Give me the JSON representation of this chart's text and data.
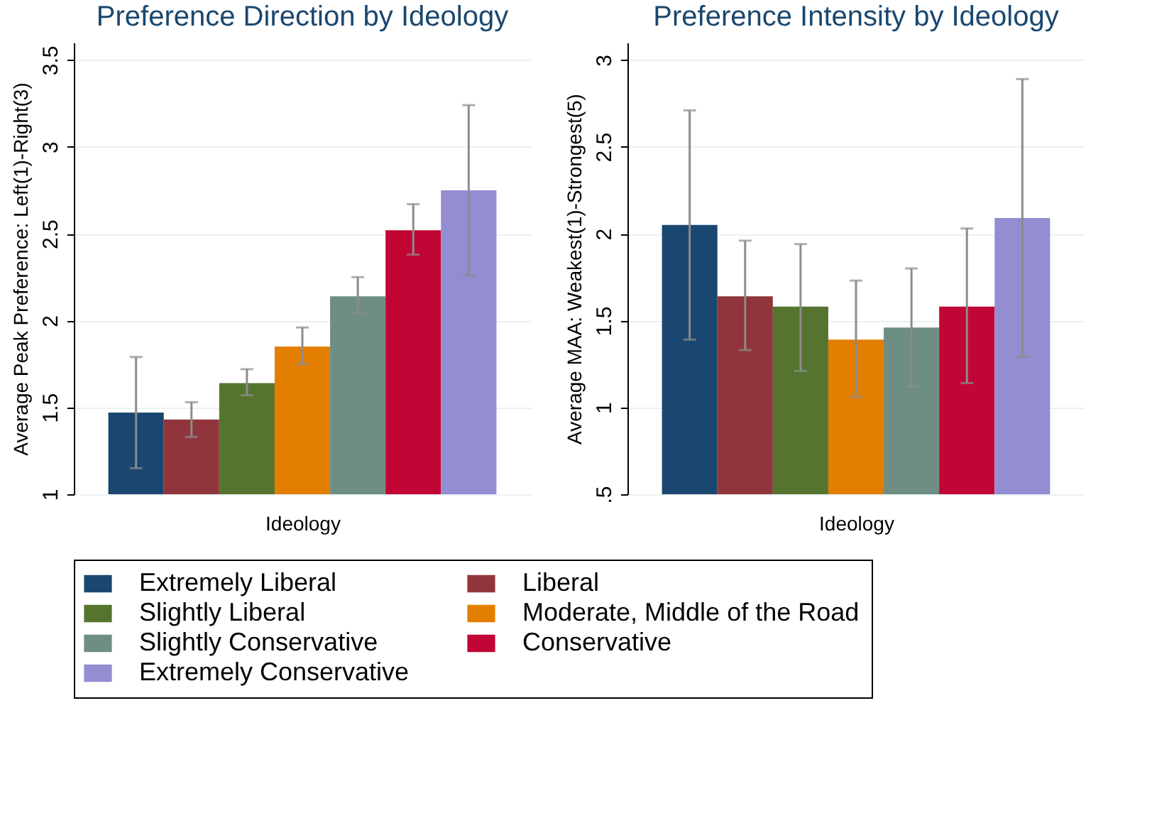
{
  "chart_data": [
    {
      "type": "bar",
      "title": "Preference Direction by Ideology",
      "xlabel": "Ideology",
      "ylabel": "Average Peak Preference: Left(1)-Right(3)",
      "categories": [
        null
      ],
      "ylim": [
        1,
        3.6
      ],
      "yticks": [
        1,
        1.5,
        2,
        2.5,
        3,
        3.5
      ],
      "grid": "y",
      "legend": "bottom",
      "series": [
        {
          "name": "Extremely Liberal",
          "color": "#1a476f",
          "values": [
            1.47
          ],
          "errors": [
            [
              1.15,
              1.79
            ]
          ]
        },
        {
          "name": "Liberal",
          "color": "#90353b",
          "values": [
            1.43
          ],
          "errors": [
            [
              1.33,
              1.53
            ]
          ]
        },
        {
          "name": "Slightly Liberal",
          "color": "#55752f",
          "values": [
            1.64
          ],
          "errors": [
            [
              1.57,
              1.72
            ]
          ]
        },
        {
          "name": "Moderate, Middle of the Road",
          "color": "#e37e00",
          "values": [
            1.85
          ],
          "errors": [
            [
              1.75,
              1.96
            ]
          ]
        },
        {
          "name": "Slightly Conservative",
          "color": "#6e8e84",
          "values": [
            2.14
          ],
          "errors": [
            [
              2.04,
              2.25
            ]
          ]
        },
        {
          "name": "Conservative",
          "color": "#c10534",
          "values": [
            2.52
          ],
          "errors": [
            [
              2.38,
              2.67
            ]
          ]
        },
        {
          "name": "Extremely Conservative",
          "color": "#938dd2",
          "values": [
            2.75
          ],
          "errors": [
            [
              2.26,
              3.24
            ]
          ]
        }
      ]
    },
    {
      "type": "bar",
      "title": "Preference Intensity by Ideology",
      "xlabel": "Ideology",
      "ylabel": "Average MAA: Weakest(1)-Strongest(5)",
      "categories": [
        null
      ],
      "ylim": [
        0.5,
        3.1
      ],
      "yticks": [
        {
          "value": 0.5,
          "label": ".5"
        },
        1,
        1.5,
        2,
        2.5,
        3
      ],
      "grid": "y",
      "legend": "bottom",
      "series": [
        {
          "name": "Extremely Liberal",
          "color": "#1a476f",
          "values": [
            2.05
          ],
          "errors": [
            [
              1.39,
              2.71
            ]
          ]
        },
        {
          "name": "Liberal",
          "color": "#90353b",
          "values": [
            1.64
          ],
          "errors": [
            [
              1.33,
              1.96
            ]
          ]
        },
        {
          "name": "Slightly Liberal",
          "color": "#55752f",
          "values": [
            1.58
          ],
          "errors": [
            [
              1.21,
              1.94
            ]
          ]
        },
        {
          "name": "Moderate, Middle of the Road",
          "color": "#e37e00",
          "values": [
            1.39
          ],
          "errors": [
            [
              1.06,
              1.73
            ]
          ]
        },
        {
          "name": "Slightly Conservative",
          "color": "#6e8e84",
          "values": [
            1.46
          ],
          "errors": [
            [
              1.12,
              1.8
            ]
          ]
        },
        {
          "name": "Conservative",
          "color": "#c10534",
          "values": [
            1.58
          ],
          "errors": [
            [
              1.14,
              2.03
            ]
          ]
        },
        {
          "name": "Extremely Conservative",
          "color": "#938dd2",
          "values": [
            2.09
          ],
          "errors": [
            [
              1.29,
              2.89
            ]
          ]
        }
      ]
    }
  ]
}
